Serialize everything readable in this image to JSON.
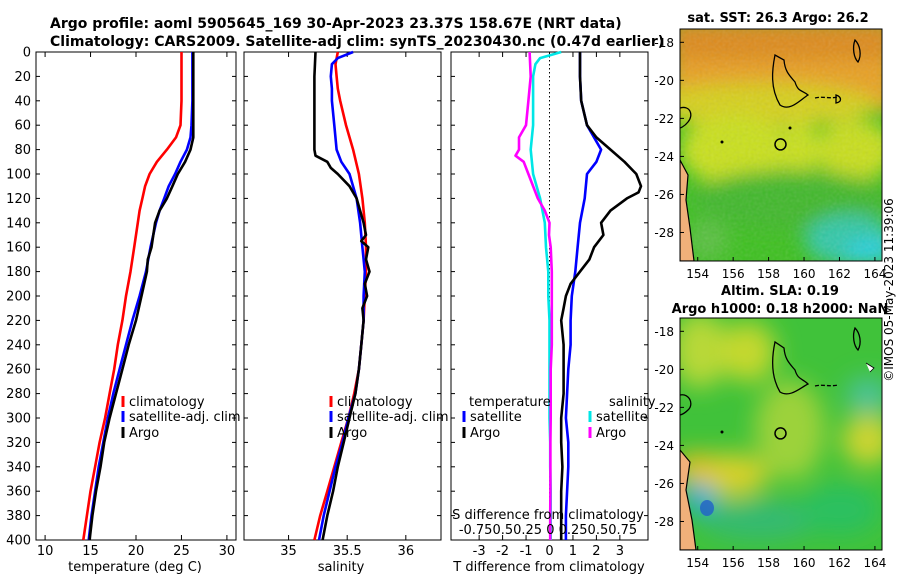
{
  "figure": {
    "title_line1": "Argo profile: aoml 5905645_169 30-Apr-2023 23.37S 158.67E (NRT data)",
    "title_line2": "Climatology: CARS2009. Satellite-adj clim: synTS_20230430.nc (0.47d earlier)",
    "side_label": "©IMOS 05-May-2023 11:39:06"
  },
  "colors": {
    "red": "#ff0000",
    "blue": "#0000ff",
    "black": "#000000",
    "cyan": "#00e6e6",
    "magenta": "#ff00ff"
  },
  "chart_data": [
    {
      "type": "line",
      "id": "temperature",
      "xlabel": "temperature (deg C)",
      "xlim": [
        9,
        31
      ],
      "ylim": [
        0,
        400
      ],
      "x_ticks": [
        "10",
        "15",
        "20",
        "25",
        "30"
      ],
      "x_tick_values": [
        10,
        15,
        20,
        25,
        30
      ],
      "y_ticks": [
        "0",
        "20",
        "40",
        "60",
        "80",
        "100",
        "120",
        "140",
        "160",
        "180",
        "200",
        "220",
        "240",
        "260",
        "280",
        "300",
        "320",
        "340",
        "360",
        "380",
        "400"
      ],
      "legend": {
        "items": [
          "climatology",
          "satellite-adj. clim",
          "Argo"
        ],
        "location": "lower-right"
      },
      "series": [
        {
          "name": "climatology",
          "color": "red",
          "depth": [
            0,
            20,
            40,
            60,
            70,
            80,
            90,
            100,
            110,
            120,
            130,
            140,
            160,
            180,
            200,
            220,
            240,
            260,
            280,
            300,
            320,
            340,
            360,
            380,
            400
          ],
          "values": [
            25.0,
            25.0,
            25.0,
            24.9,
            24.4,
            23.4,
            22.3,
            21.5,
            21.0,
            20.7,
            20.4,
            20.2,
            19.8,
            19.4,
            18.9,
            18.5,
            18.0,
            17.6,
            17.1,
            16.6,
            16.0,
            15.5,
            15.0,
            14.6,
            14.2
          ]
        },
        {
          "name": "satellite-adj. clim",
          "color": "blue",
          "depth": [
            0,
            20,
            40,
            60,
            70,
            80,
            90,
            100,
            110,
            120,
            130,
            140,
            160,
            180,
            200,
            220,
            240,
            260,
            280,
            300,
            320,
            340,
            360,
            380,
            400
          ],
          "values": [
            26.2,
            26.2,
            26.2,
            26.1,
            26.0,
            25.6,
            24.9,
            24.3,
            23.6,
            23.1,
            22.6,
            22.2,
            21.6,
            21.1,
            20.4,
            19.6,
            18.9,
            18.2,
            17.5,
            16.9,
            16.4,
            15.9,
            15.5,
            15.1,
            14.8
          ]
        },
        {
          "name": "Argo",
          "color": "black",
          "depth": [
            0,
            20,
            40,
            60,
            70,
            80,
            90,
            100,
            110,
            120,
            130,
            140,
            150,
            160,
            170,
            180,
            190,
            200,
            220,
            240,
            260,
            280,
            300,
            320,
            340,
            360,
            380,
            400
          ],
          "values": [
            26.3,
            26.3,
            26.3,
            26.3,
            26.3,
            26.0,
            25.4,
            24.6,
            24.0,
            23.4,
            22.6,
            22.1,
            21.9,
            21.7,
            21.3,
            21.2,
            20.9,
            20.6,
            20.0,
            19.2,
            18.5,
            17.8,
            17.1,
            16.5,
            16.1,
            15.6,
            15.2,
            14.9
          ]
        }
      ]
    },
    {
      "type": "line",
      "id": "salinity",
      "xlabel": "salinity",
      "xlim": [
        34.62,
        36.3
      ],
      "ylim": [
        0,
        400
      ],
      "x_ticks": [
        "35",
        "35.5",
        "36"
      ],
      "x_tick_values": [
        35,
        35.5,
        36
      ],
      "legend": {
        "items": [
          "climatology",
          "satellite-adj. clim",
          "Argo"
        ],
        "location": "lower-right"
      },
      "series": [
        {
          "name": "climatology",
          "color": "red",
          "depth": [
            0,
            10,
            20,
            30,
            40,
            60,
            80,
            100,
            120,
            140,
            160,
            180,
            200,
            220,
            240,
            260,
            280,
            300,
            320,
            340,
            360,
            380,
            400
          ],
          "values": [
            35.42,
            35.4,
            35.41,
            35.42,
            35.44,
            35.49,
            35.55,
            35.6,
            35.63,
            35.65,
            35.66,
            35.66,
            35.65,
            35.64,
            35.62,
            35.6,
            35.56,
            35.51,
            35.45,
            35.39,
            35.33,
            35.27,
            35.22
          ]
        },
        {
          "name": "satellite-adj. clim",
          "color": "blue",
          "depth": [
            0,
            5,
            10,
            20,
            30,
            40,
            60,
            80,
            90,
            100,
            120,
            140,
            160,
            180,
            200,
            220,
            240,
            260,
            280,
            300,
            320,
            340,
            360,
            380,
            400
          ],
          "values": [
            35.55,
            35.42,
            35.37,
            35.36,
            35.37,
            35.37,
            35.39,
            35.41,
            35.45,
            35.52,
            35.58,
            35.61,
            35.63,
            35.65,
            35.64,
            35.64,
            35.62,
            35.6,
            35.57,
            35.51,
            35.46,
            35.4,
            35.35,
            35.3,
            35.26
          ]
        },
        {
          "name": "Argo",
          "color": "black",
          "depth": [
            0,
            20,
            40,
            60,
            70,
            80,
            85,
            90,
            95,
            100,
            110,
            120,
            130,
            140,
            150,
            155,
            160,
            170,
            180,
            190,
            200,
            210,
            220,
            240,
            260,
            280,
            300,
            320,
            340,
            360,
            380,
            400
          ],
          "values": [
            35.23,
            35.22,
            35.22,
            35.22,
            35.22,
            35.22,
            35.23,
            35.33,
            35.36,
            35.42,
            35.52,
            35.58,
            35.61,
            35.64,
            35.66,
            35.62,
            35.68,
            35.66,
            35.69,
            35.65,
            35.67,
            35.63,
            35.64,
            35.62,
            35.6,
            35.57,
            35.52,
            35.47,
            35.42,
            35.38,
            35.33,
            35.29
          ]
        }
      ]
    },
    {
      "type": "line",
      "id": "difference",
      "xlabel": "T difference from climatology",
      "top_axis_label": "S difference from climatology",
      "top_ticks": [
        "-0.75",
        "-0.5",
        "0.25",
        "0",
        "0.25",
        "0.5",
        "0.75"
      ],
      "top_ticks_text": "-0.750.50.25 0 0.250.50.75",
      "xlim": [
        -4.2,
        4.2
      ],
      "ylim": [
        0,
        400
      ],
      "x_ticks": [
        "-3",
        "-2",
        "-1",
        "0",
        "1",
        "2",
        "3"
      ],
      "x_tick_values": [
        -3,
        -2,
        -1,
        0,
        1,
        2,
        3
      ],
      "legend": {
        "temperature_title": "temperature",
        "salinity_title": "salinity",
        "items": [
          "satellite",
          "Argo",
          "satellite",
          "Argo"
        ],
        "location": "lower-right"
      },
      "series": [
        {
          "name": "temperature satellite",
          "color": "blue",
          "depth": [
            0,
            20,
            40,
            60,
            80,
            90,
            100,
            120,
            140,
            160,
            180,
            200,
            220,
            240,
            260,
            280,
            300,
            320,
            340,
            360,
            380,
            400
          ],
          "values": [
            1.3,
            1.3,
            1.35,
            1.6,
            2.2,
            2.0,
            1.6,
            1.5,
            1.3,
            1.2,
            1.1,
            0.95,
            0.9,
            0.9,
            0.8,
            0.75,
            0.7,
            0.8,
            0.8,
            0.75,
            0.7,
            0.7
          ]
        },
        {
          "name": "temperature Argo",
          "color": "black",
          "depth": [
            0,
            20,
            40,
            60,
            70,
            80,
            90,
            100,
            110,
            115,
            120,
            130,
            140,
            150,
            160,
            170,
            180,
            190,
            200,
            210,
            220,
            240,
            260,
            280,
            300,
            320,
            340,
            360,
            380,
            400
          ],
          "values": [
            1.3,
            1.3,
            1.35,
            1.6,
            2.0,
            2.6,
            3.2,
            3.7,
            3.9,
            3.8,
            3.3,
            2.6,
            2.2,
            2.3,
            1.9,
            1.7,
            1.3,
            0.9,
            0.7,
            0.6,
            0.5,
            0.6,
            0.6,
            0.6,
            0.5,
            0.5,
            0.55,
            0.5,
            0.5,
            0.5
          ]
        },
        {
          "name": "salinity satellite",
          "color": "cyan",
          "depth": [
            0,
            5,
            10,
            20,
            40,
            60,
            80,
            100,
            120,
            140,
            160,
            180,
            200,
            220,
            240,
            260,
            280,
            300,
            320,
            340,
            360,
            380,
            400
          ],
          "values": [
            0.5,
            -0.4,
            -0.6,
            -0.7,
            -0.7,
            -0.7,
            -0.8,
            -0.7,
            -0.4,
            -0.2,
            -0.15,
            -0.05,
            -0.05,
            0.0,
            0.0,
            0.0,
            0.0,
            0.0,
            0.03,
            0.03,
            0.05,
            0.05,
            0.05
          ]
        },
        {
          "name": "salinity Argo",
          "color": "magenta",
          "depth": [
            0,
            20,
            40,
            60,
            70,
            80,
            85,
            90,
            100,
            120,
            130,
            140,
            150,
            160,
            180,
            200,
            220,
            240,
            260,
            280,
            300,
            320,
            340,
            360,
            380,
            400
          ],
          "values": [
            -0.85,
            -0.8,
            -0.9,
            -1.0,
            -1.3,
            -1.3,
            -1.45,
            -1.1,
            -0.9,
            -0.5,
            -0.2,
            0.0,
            -0.02,
            0.05,
            0.1,
            0.1,
            0.1,
            0.1,
            0.05,
            0.05,
            0.05,
            0.04,
            0.04,
            0.04,
            0.03,
            0.03
          ]
        }
      ]
    },
    {
      "type": "heatmap",
      "id": "sst_map",
      "title": "sat. SST: 26.3 Argo: 26.2",
      "x_ticks": [
        "154",
        "156",
        "158",
        "160",
        "162",
        "164"
      ],
      "x_tick_values": [
        154,
        156,
        158,
        160,
        162,
        164
      ],
      "y_ticks": [
        "-18",
        "-20",
        "-22",
        "-24",
        "-26",
        "-28"
      ],
      "y_tick_values": [
        -18,
        -20,
        -22,
        -24,
        -26,
        -28
      ],
      "xlim": [
        153.0,
        164.4
      ],
      "ylim": [
        -29.5,
        -17.3
      ],
      "argo_position": [
        158.67,
        -23.37
      ]
    },
    {
      "type": "heatmap",
      "id": "sla_map",
      "title_line1": "Altim. SLA: 0.19",
      "title_line2": "Argo h1000: 0.18 h2000: NaN",
      "x_ticks": [
        "154",
        "156",
        "158",
        "160",
        "162",
        "164"
      ],
      "x_tick_values": [
        154,
        156,
        158,
        160,
        162,
        164
      ],
      "y_ticks": [
        "-18",
        "-20",
        "-22",
        "-24",
        "-26",
        "-28"
      ],
      "y_tick_values": [
        -18,
        -20,
        -22,
        -24,
        -26,
        -28
      ],
      "xlim": [
        153.0,
        164.4
      ],
      "ylim": [
        -29.5,
        -17.3
      ],
      "argo_position": [
        158.67,
        -23.37
      ]
    }
  ]
}
